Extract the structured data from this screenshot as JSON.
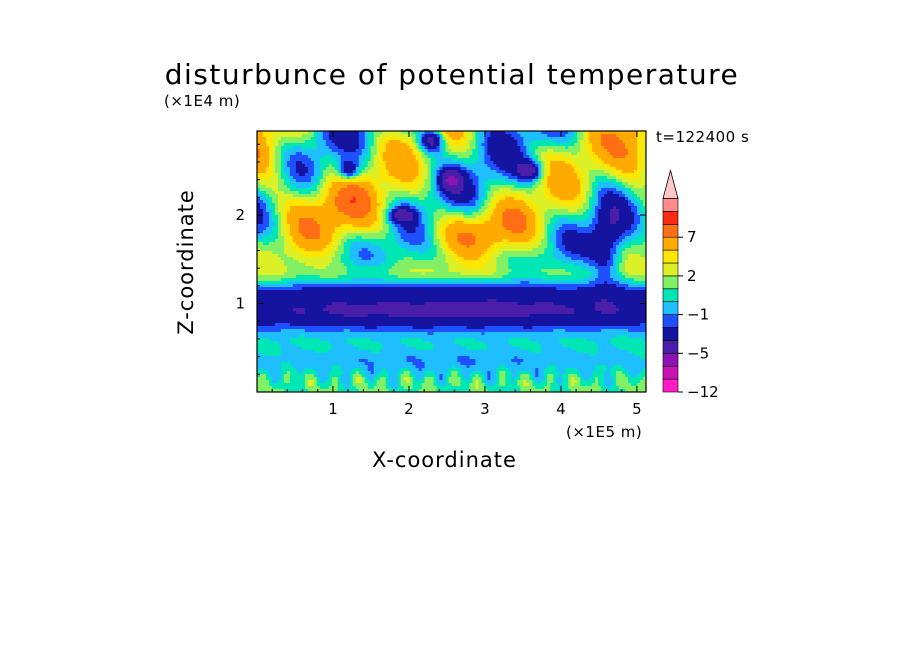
{
  "chart_data": {
    "type": "heatmap",
    "title": "disturbunce of potential temperature",
    "xlabel": "X-coordinate",
    "ylabel": "Z-coordinate",
    "x_units": "(×1E5 m)",
    "y_units": "(×1E4 m)",
    "annotation": "t=122400 s",
    "xlim": [
      0,
      5.12
    ],
    "ylim": [
      0,
      2.95
    ],
    "x_ticks": [
      1,
      2,
      3,
      4,
      5
    ],
    "x_tick_labels": [
      "1",
      "2",
      "3",
      "4",
      "5"
    ],
    "y_ticks": [
      1,
      2
    ],
    "y_tick_labels": [
      "1",
      "2"
    ],
    "colorbar": {
      "extend": "max",
      "levels": [
        -12,
        -10,
        -8,
        -5,
        -3,
        -2,
        -1,
        0,
        1,
        2,
        3,
        5,
        7,
        9,
        11
      ],
      "colors": [
        "#ff1cc8",
        "#c814b4",
        "#8c14b4",
        "#4b1eaa",
        "#1414a0",
        "#1e50ff",
        "#1ebeff",
        "#00e6b4",
        "#82f064",
        "#dcf028",
        "#ffe600",
        "#ffaa00",
        "#ff6e14",
        "#ff2814",
        "#ff8c8c",
        "#ffc8c8"
      ],
      "tick_levels": [
        7,
        2,
        -1,
        -5,
        -12
      ],
      "tick_labels": [
        "7",
        "2",
        "−1",
        "−5",
        "−12"
      ]
    }
  }
}
